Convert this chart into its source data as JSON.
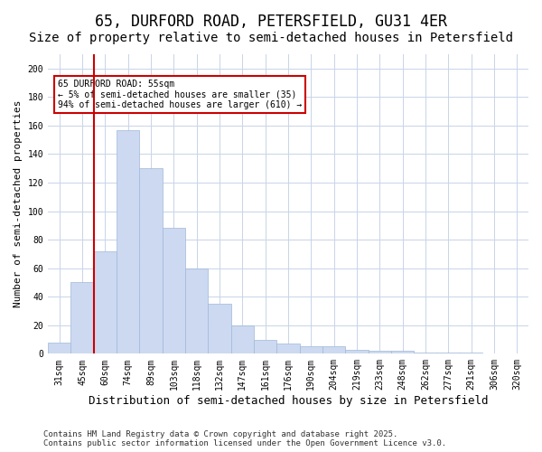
{
  "title1": "65, DURFORD ROAD, PETERSFIELD, GU31 4ER",
  "title2": "Size of property relative to semi-detached houses in Petersfield",
  "xlabel": "Distribution of semi-detached houses by size in Petersfield",
  "ylabel": "Number of semi-detached properties",
  "bin_labels": [
    "31sqm",
    "45sqm",
    "60sqm",
    "74sqm",
    "89sqm",
    "103sqm",
    "118sqm",
    "132sqm",
    "147sqm",
    "161sqm",
    "176sqm",
    "190sqm",
    "204sqm",
    "219sqm",
    "233sqm",
    "248sqm",
    "262sqm",
    "277sqm",
    "291sqm",
    "306sqm",
    "320sqm"
  ],
  "bar_values": [
    8,
    50,
    72,
    157,
    130,
    88,
    60,
    35,
    20,
    10,
    7,
    5,
    5,
    3,
    2,
    2,
    1,
    1,
    1,
    0,
    0
  ],
  "bar_color": "#ccd9f0",
  "bar_edge_color": "#a0b8d8",
  "grid_color": "#c8d4e8",
  "red_line_color": "#cc0000",
  "red_line_x": 1.5,
  "annotation_title": "65 DURFORD ROAD: 55sqm",
  "annotation_line1": "← 5% of semi-detached houses are smaller (35)",
  "annotation_line2": "94% of semi-detached houses are larger (610) →",
  "annotation_box_color": "#ffffff",
  "annotation_box_edge_color": "#cc0000",
  "footnote1": "Contains HM Land Registry data © Crown copyright and database right 2025.",
  "footnote2": "Contains public sector information licensed under the Open Government Licence v3.0.",
  "ylim": [
    0,
    210
  ],
  "yticks": [
    0,
    20,
    40,
    60,
    80,
    100,
    120,
    140,
    160,
    180,
    200
  ],
  "title1_fontsize": 12,
  "title2_fontsize": 10,
  "xlabel_fontsize": 9,
  "ylabel_fontsize": 8,
  "tick_fontsize": 7,
  "footnote_fontsize": 6.5
}
